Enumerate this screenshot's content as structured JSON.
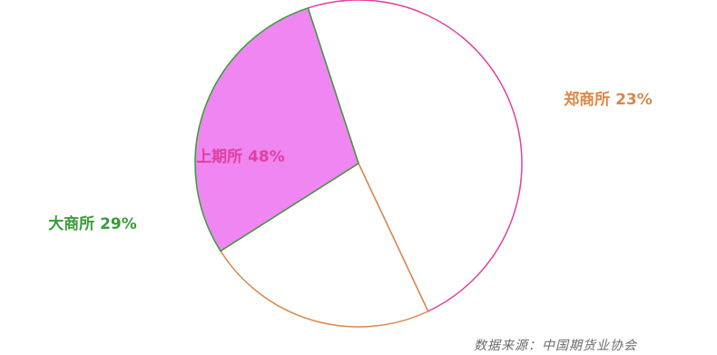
{
  "chart_data": {
    "type": "pie",
    "title": "",
    "categories": [
      "上期所",
      "郑商所",
      "大商所"
    ],
    "values": [
      48,
      23,
      29
    ],
    "labels": [
      "上期所 48%",
      "郑商所 23%",
      "大商所 29%"
    ],
    "colors": [
      "#e040a0",
      "#d9884a",
      "#3a9a3a"
    ],
    "slice_fills": [
      "#ffffff",
      "#ffffff",
      "#ef86f2"
    ],
    "legend": "none"
  },
  "source_note": "数据来源：中国期货业协会"
}
